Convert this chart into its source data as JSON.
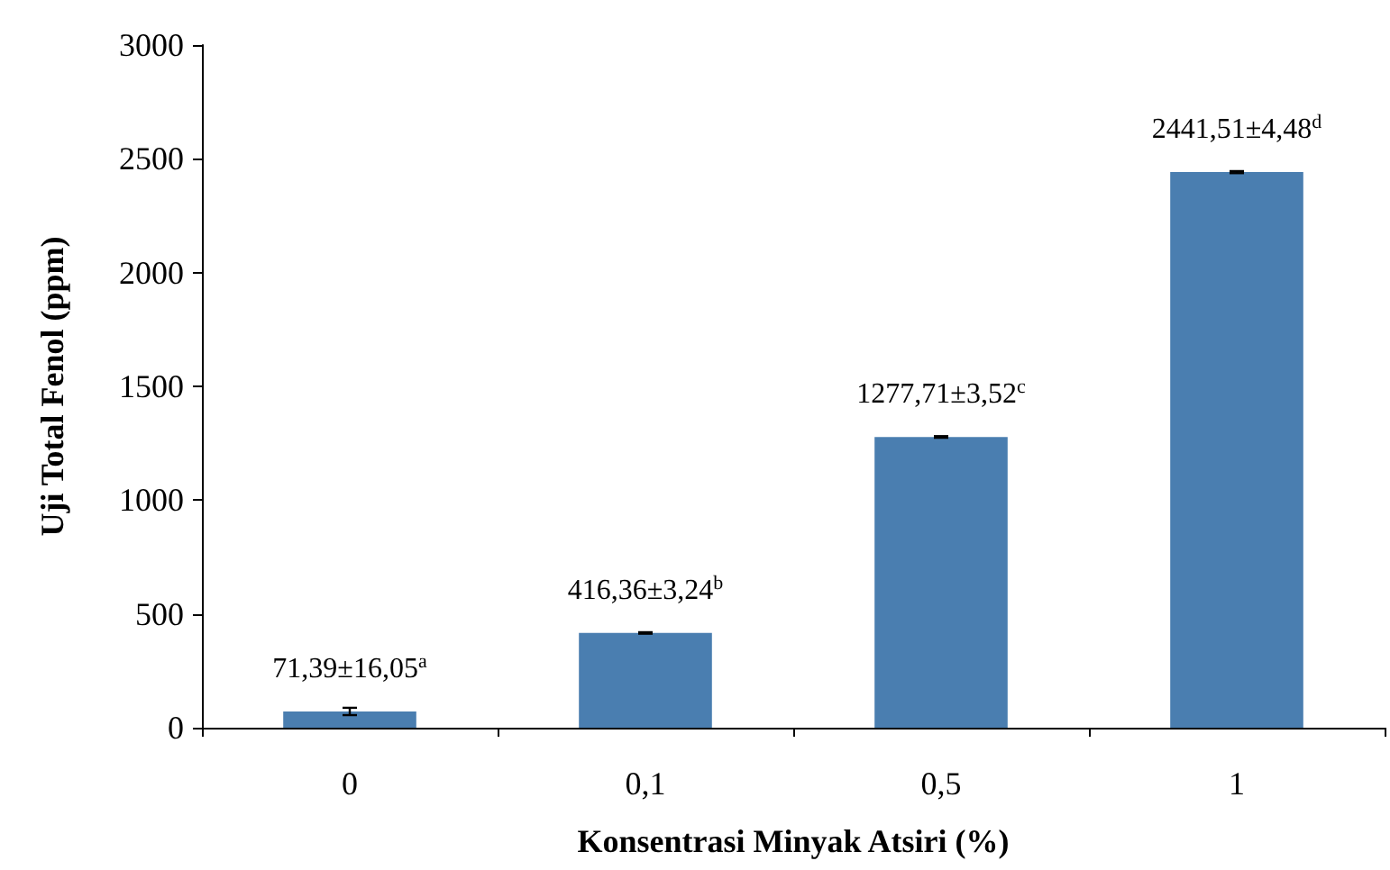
{
  "chart_data": {
    "type": "bar",
    "xlabel": "Konsentrasi Minyak Atsiri (%)",
    "ylabel": "Uji Total Fenol (ppm)",
    "categories": [
      "0",
      "0,1",
      "0,5",
      "1"
    ],
    "values": [
      71.39,
      416.36,
      1277.71,
      2441.51
    ],
    "errors": [
      16.05,
      3.24,
      3.52,
      4.48
    ],
    "value_labels": [
      "71,39±16,05$^{a}$",
      "416,36±3,24$^{b}$",
      "1277,71±3,52$^{c}$",
      "2441,51±4,48$^{d}$"
    ],
    "color": "#4a7eb0",
    "ylim": [
      0,
      3000
    ],
    "yticks": [
      0,
      500,
      1000,
      1500,
      2000,
      2500,
      3000
    ],
    "grid": false
  }
}
